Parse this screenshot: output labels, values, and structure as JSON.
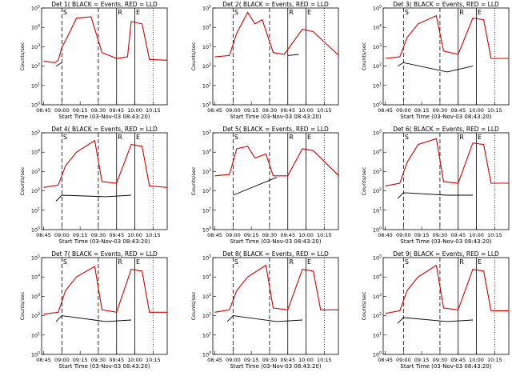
{
  "figure": {
    "xlabel": "Start Time (03-Nov-03 08:43:20)",
    "ylabel": "Counts/sec",
    "x_tick_labels": [
      "08:45",
      "09:00",
      "09:15",
      "09:30",
      "09:45",
      "10:00",
      "10:15"
    ]
  },
  "colors": {
    "events": "#000000",
    "lld": "#d40000",
    "axes": "#000000"
  },
  "chart_data": [
    {
      "type": "line",
      "title": "Det 1( BLACK = Events, RED = LLD",
      "xlabel": "Start Time (03-Nov-03 08:43:20)",
      "ylabel": "Counts/sec",
      "yscale": "log",
      "ylim": [
        1,
        100000
      ],
      "x_ticks": [
        "08:45",
        "09:00",
        "09:15",
        "09:30",
        "09:45",
        "10:00",
        "10:15"
      ],
      "markers": [
        "S",
        "R",
        "E"
      ],
      "series": [
        {
          "name": "BLACK = Events",
          "values": [
            [
              8.92,
              100
            ],
            [
              9.0,
              150
            ]
          ]
        },
        {
          "name": "RED = LLD",
          "values": [
            [
              8.75,
              180
            ],
            [
              8.9,
              150
            ],
            [
              8.95,
              200
            ],
            [
              9.0,
              900
            ],
            [
              9.1,
              5000
            ],
            [
              9.2,
              30000
            ],
            [
              9.4,
              35000
            ],
            [
              9.55,
              500
            ],
            [
              9.75,
              250
            ],
            [
              9.9,
              300
            ],
            [
              9.95,
              20000
            ],
            [
              10.1,
              15000
            ],
            [
              10.2,
              220
            ],
            [
              10.45,
              200
            ]
          ]
        }
      ]
    },
    {
      "type": "line",
      "title": "Det 2( BLACK = Events, RED = LLD",
      "xlabel": "Start Time (03-Nov-03 08:43:20)",
      "ylabel": "Counts/sec",
      "yscale": "log",
      "ylim": [
        1,
        100000
      ],
      "x_ticks": [
        "08:45",
        "09:00",
        "09:15",
        "09:30",
        "09:45",
        "10:00",
        "10:15"
      ],
      "markers": [
        "S",
        "R",
        "E"
      ],
      "series": [
        {
          "name": "BLACK = Events",
          "values": [
            [
              9.75,
              350
            ],
            [
              9.9,
              400
            ]
          ]
        },
        {
          "name": "RED = LLD",
          "values": [
            [
              8.75,
              300
            ],
            [
              8.95,
              350
            ],
            [
              9.05,
              5000
            ],
            [
              9.2,
              60000
            ],
            [
              9.3,
              15000
            ],
            [
              9.4,
              25000
            ],
            [
              9.55,
              500
            ],
            [
              9.7,
              400
            ],
            [
              9.95,
              8000
            ],
            [
              10.1,
              6000
            ],
            [
              10.45,
              350
            ]
          ]
        }
      ]
    },
    {
      "type": "line",
      "title": "Det 3( BLACK = Events, RED = LLD",
      "xlabel": "Start Time (03-Nov-03 08:43:20)",
      "ylabel": "Counts/sec",
      "yscale": "log",
      "ylim": [
        1,
        100000
      ],
      "x_ticks": [
        "08:45",
        "09:00",
        "09:15",
        "09:30",
        "09:45",
        "10:00",
        "10:15"
      ],
      "markers": [
        "S",
        "R",
        "E"
      ],
      "series": [
        {
          "name": "BLACK = Events",
          "values": [
            [
              8.92,
              100
            ],
            [
              9.0,
              150
            ],
            [
              9.6,
              50
            ],
            [
              9.95,
              100
            ]
          ]
        },
        {
          "name": "RED = LLD",
          "values": [
            [
              8.75,
              250
            ],
            [
              8.95,
              300
            ],
            [
              9.05,
              3000
            ],
            [
              9.2,
              15000
            ],
            [
              9.45,
              40000
            ],
            [
              9.55,
              600
            ],
            [
              9.75,
              400
            ],
            [
              9.95,
              30000
            ],
            [
              10.1,
              25000
            ],
            [
              10.2,
              250
            ],
            [
              10.45,
              250
            ]
          ]
        }
      ]
    },
    {
      "type": "line",
      "title": "Det 4( BLACK = Events, RED = LLD",
      "xlabel": "Start Time (03-Nov-03 08:43:20)",
      "ylabel": "Counts/sec",
      "yscale": "log",
      "ylim": [
        1,
        100000
      ],
      "x_ticks": [
        "08:45",
        "09:00",
        "09:15",
        "09:30",
        "09:45",
        "10:00",
        "10:15"
      ],
      "markers": [
        "S",
        "R",
        "E"
      ],
      "series": [
        {
          "name": "BLACK = Events",
          "values": [
            [
              8.92,
              30
            ],
            [
              9.0,
              60
            ],
            [
              9.6,
              50
            ],
            [
              9.95,
              60
            ]
          ]
        },
        {
          "name": "RED = LLD",
          "values": [
            [
              8.75,
              150
            ],
            [
              8.95,
              200
            ],
            [
              9.05,
              2000
            ],
            [
              9.2,
              10000
            ],
            [
              9.45,
              40000
            ],
            [
              9.55,
              300
            ],
            [
              9.75,
              250
            ],
            [
              9.95,
              25000
            ],
            [
              10.1,
              20000
            ],
            [
              10.2,
              180
            ],
            [
              10.45,
              150
            ]
          ]
        }
      ]
    },
    {
      "type": "line",
      "title": "Det 5( BLACK = Events, RED = LLD",
      "xlabel": "Start Time (03-Nov-03 08:43:20)",
      "ylabel": "Counts/sec",
      "yscale": "log",
      "ylim": [
        1,
        100000
      ],
      "x_ticks": [
        "08:45",
        "09:00",
        "09:15",
        "09:30",
        "09:45",
        "10:00",
        "10:15"
      ],
      "markers": [
        "S",
        "R",
        "E"
      ],
      "series": [
        {
          "name": "BLACK = Events",
          "values": [
            [
              9.0,
              60
            ],
            [
              9.6,
              500
            ]
          ]
        },
        {
          "name": "RED = LLD",
          "values": [
            [
              8.75,
              600
            ],
            [
              8.95,
              700
            ],
            [
              9.05,
              15000
            ],
            [
              9.2,
              20000
            ],
            [
              9.3,
              5000
            ],
            [
              9.45,
              8000
            ],
            [
              9.55,
              600
            ],
            [
              9.75,
              600
            ],
            [
              9.95,
              15000
            ],
            [
              10.1,
              12000
            ],
            [
              10.45,
              600
            ]
          ]
        }
      ]
    },
    {
      "type": "line",
      "title": "Det 6( BLACK = Events, RED = LLD",
      "xlabel": "Start Time (03-Nov-03 08:43:20)",
      "ylabel": "Counts/sec",
      "yscale": "log",
      "ylim": [
        1,
        100000
      ],
      "x_ticks": [
        "08:45",
        "09:00",
        "09:15",
        "09:30",
        "09:45",
        "10:00",
        "10:15"
      ],
      "markers": [
        "S",
        "R",
        "E"
      ],
      "series": [
        {
          "name": "BLACK = Events",
          "values": [
            [
              8.92,
              40
            ],
            [
              9.0,
              80
            ],
            [
              9.6,
              60
            ],
            [
              9.95,
              60
            ]
          ]
        },
        {
          "name": "RED = LLD",
          "values": [
            [
              8.75,
              180
            ],
            [
              8.95,
              250
            ],
            [
              9.05,
              3000
            ],
            [
              9.2,
              25000
            ],
            [
              9.45,
              50000
            ],
            [
              9.55,
              300
            ],
            [
              9.75,
              250
            ],
            [
              9.95,
              30000
            ],
            [
              10.1,
              25000
            ],
            [
              10.2,
              250
            ],
            [
              10.45,
              250
            ]
          ]
        }
      ]
    },
    {
      "type": "line",
      "title": "Det 7( BLACK = Events, RED = LLD",
      "xlabel": "Start Time (03-Nov-03 08:43:20)",
      "ylabel": "Counts/sec",
      "yscale": "log",
      "ylim": [
        1,
        100000
      ],
      "x_ticks": [
        "08:45",
        "09:00",
        "09:15",
        "09:30",
        "09:45",
        "10:00",
        "10:15"
      ],
      "markers": [
        "S",
        "R",
        "E"
      ],
      "series": [
        {
          "name": "BLACK = Events",
          "values": [
            [
              8.92,
              50
            ],
            [
              9.0,
              100
            ],
            [
              9.6,
              50
            ],
            [
              9.95,
              60
            ]
          ]
        },
        {
          "name": "RED = LLD",
          "values": [
            [
              8.75,
              120
            ],
            [
              8.95,
              150
            ],
            [
              9.05,
              2000
            ],
            [
              9.2,
              10000
            ],
            [
              9.45,
              35000
            ],
            [
              9.55,
              200
            ],
            [
              9.75,
              150
            ],
            [
              9.95,
              25000
            ],
            [
              10.1,
              20000
            ],
            [
              10.2,
              150
            ],
            [
              10.45,
              150
            ]
          ]
        }
      ]
    },
    {
      "type": "line",
      "title": "Det 8( BLACK = Events, RED = LLD",
      "xlabel": "Start Time (03-Nov-03 08:43:20)",
      "ylabel": "Counts/sec",
      "yscale": "log",
      "ylim": [
        1,
        100000
      ],
      "x_ticks": [
        "08:45",
        "09:00",
        "09:15",
        "09:30",
        "09:45",
        "10:00",
        "10:15"
      ],
      "markers": [
        "S",
        "R",
        "E"
      ],
      "series": [
        {
          "name": "BLACK = Events",
          "values": [
            [
              8.92,
              50
            ],
            [
              9.0,
              100
            ],
            [
              9.6,
              50
            ],
            [
              9.95,
              60
            ]
          ]
        },
        {
          "name": "RED = LLD",
          "values": [
            [
              8.75,
              150
            ],
            [
              8.95,
              200
            ],
            [
              9.05,
              2000
            ],
            [
              9.2,
              10000
            ],
            [
              9.45,
              40000
            ],
            [
              9.55,
              250
            ],
            [
              9.75,
              200
            ],
            [
              9.95,
              25000
            ],
            [
              10.1,
              20000
            ],
            [
              10.2,
              200
            ],
            [
              10.45,
              200
            ]
          ]
        }
      ]
    },
    {
      "type": "line",
      "title": "Det 9( BLACK = Events, RED = LLD",
      "xlabel": "Start Time (03-Nov-03 08:43:20)",
      "ylabel": "Counts/sec",
      "yscale": "log",
      "ylim": [
        1,
        100000
      ],
      "x_ticks": [
        "08:45",
        "09:00",
        "09:15",
        "09:30",
        "09:45",
        "10:00",
        "10:15"
      ],
      "markers": [
        "S",
        "R",
        "E"
      ],
      "series": [
        {
          "name": "BLACK = Events",
          "values": [
            [
              8.92,
              40
            ],
            [
              9.0,
              80
            ],
            [
              9.6,
              50
            ],
            [
              9.95,
              60
            ]
          ]
        },
        {
          "name": "RED = LLD",
          "values": [
            [
              8.75,
              130
            ],
            [
              8.95,
              180
            ],
            [
              9.05,
              2000
            ],
            [
              9.2,
              10000
            ],
            [
              9.45,
              40000
            ],
            [
              9.55,
              250
            ],
            [
              9.75,
              200
            ],
            [
              9.95,
              25000
            ],
            [
              10.1,
              20000
            ],
            [
              10.2,
              180
            ],
            [
              10.45,
              180
            ]
          ]
        }
      ]
    }
  ]
}
